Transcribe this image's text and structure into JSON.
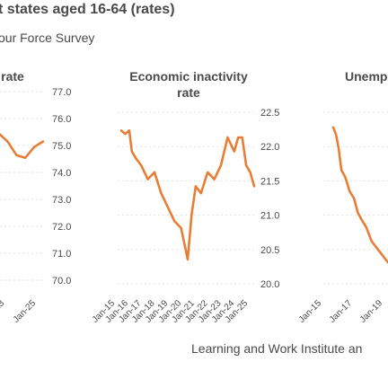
{
  "header": {
    "title": "t states aged 16-64 (rates)",
    "subtitle": "our Force Survey",
    "source": "Learning and Work Institute an"
  },
  "chart_data": [
    {
      "type": "line",
      "title_lines": [
        "rate"
      ],
      "y_ticks": [
        "77.0",
        "76.0",
        "75.0",
        "74.0",
        "73.0",
        "72.0",
        "71.0",
        "70.0"
      ],
      "ylim": [
        70.0,
        77.0
      ],
      "x_ticks": [
        "Jan-23",
        "Jan-25"
      ],
      "series": [
        {
          "color": "#e87d35",
          "x": [
            0,
            0.2,
            0.4,
            0.55,
            0.7,
            0.85,
            1.0
          ],
          "values": [
            75.2,
            75.5,
            75.1,
            74.6,
            74.5,
            74.9,
            75.1
          ]
        }
      ]
    },
    {
      "type": "line",
      "title_lines": [
        "Economic inactivity",
        "rate"
      ],
      "y_ticks": [
        "22.5",
        "22.0",
        "21.5",
        "21.0",
        "20.5",
        "20.0"
      ],
      "ylim": [
        20.0,
        22.5
      ],
      "x_ticks": [
        "Jan-15",
        "Jan-16",
        "Jan-17",
        "Jan-18",
        "Jan-19",
        "Jan-20",
        "Jan-21",
        "Jan-22",
        "Jan-23",
        "Jan-24",
        "Jan-25"
      ],
      "series": [
        {
          "color": "#e87d35",
          "x": [
            0,
            0.03,
            0.06,
            0.08,
            0.11,
            0.15,
            0.2,
            0.25,
            0.3,
            0.35,
            0.4,
            0.45,
            0.5,
            0.53,
            0.56,
            0.6,
            0.65,
            0.7,
            0.75,
            0.8,
            0.85,
            0.88,
            0.91,
            0.94,
            0.97,
            1.0
          ],
          "values": [
            22.2,
            22.15,
            22.2,
            21.9,
            21.8,
            21.7,
            21.5,
            21.6,
            21.3,
            21.1,
            20.9,
            20.8,
            20.35,
            21.0,
            21.4,
            21.3,
            21.6,
            21.5,
            21.7,
            22.1,
            21.9,
            22.1,
            22.1,
            21.7,
            21.6,
            21.4
          ]
        }
      ]
    },
    {
      "type": "line",
      "title_lines": [
        "Unemp"
      ],
      "y_ticks": [],
      "ylim": [
        3.5,
        6.0
      ],
      "x_ticks": [
        "Jan-15",
        "Jan-17",
        "Jan-19"
      ],
      "series": [
        {
          "color": "#e87d35",
          "x": [
            0,
            0.05,
            0.1,
            0.15,
            0.22,
            0.3,
            0.38,
            0.45,
            0.52,
            0.6,
            0.7,
            0.8,
            0.9,
            1.0
          ],
          "values": [
            5.7,
            5.6,
            5.4,
            5.1,
            5.0,
            4.8,
            4.7,
            4.5,
            4.4,
            4.3,
            4.1,
            4.0,
            3.9,
            3.8
          ]
        }
      ]
    }
  ]
}
